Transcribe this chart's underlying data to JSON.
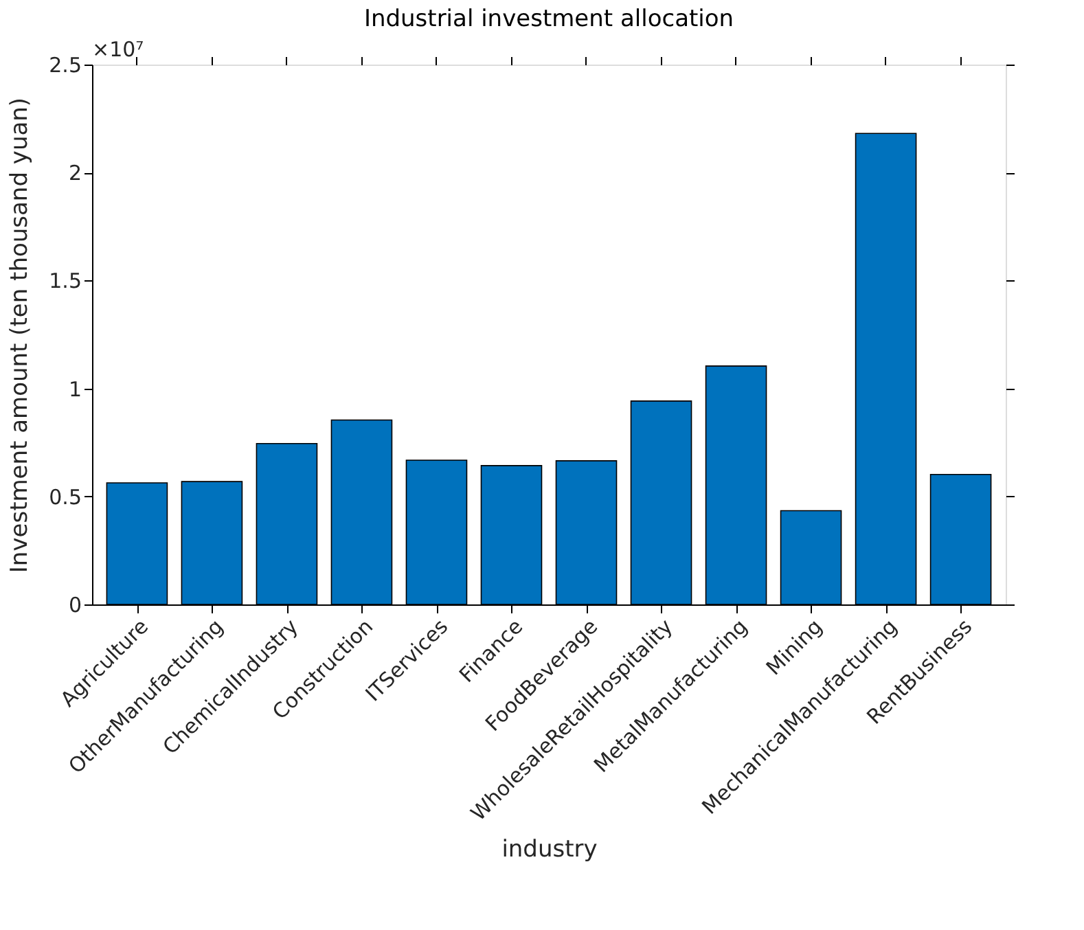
{
  "chart_data": {
    "type": "bar",
    "title": "Industrial investment allocation",
    "xlabel": "industry",
    "ylabel": "Investment amount (ten thousand yuan)",
    "categories": [
      "Agriculture",
      "OtherManufacturing",
      "ChemicalIndustry",
      "Construction",
      "ITServices",
      "Finance",
      "FoodBeverage",
      "WholesaleRetailHospitality",
      "MetalManufacturing",
      "Mining",
      "MechanicalManufacturing",
      "RentBusiness"
    ],
    "values": [
      0.563,
      0.569,
      0.745,
      0.854,
      0.668,
      0.643,
      0.665,
      0.942,
      1.104,
      0.434,
      2.181,
      0.602
    ],
    "color": "#0072bd",
    "ylim": [
      0,
      2.5
    ],
    "yticks": [
      0,
      0.5,
      1,
      1.5,
      2,
      2.5
    ],
    "annotations": [
      "×10⁷"
    ],
    "grid": false
  }
}
